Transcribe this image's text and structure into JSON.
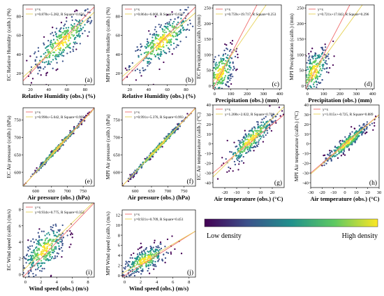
{
  "colorbar": {
    "low_label": "Low density",
    "high_label": "High density",
    "colors": [
      "#440154",
      "#3b528b",
      "#21918c",
      "#5ec962",
      "#fde725"
    ]
  },
  "line_colors": {
    "identity": "#f06d6d",
    "fit": "#e8d35a"
  },
  "chart_data": [
    {
      "id": "a",
      "type": "scatter",
      "panel_label": "(a)",
      "xlabel": "Relative Humidity (obs.) (%)",
      "ylabel": "EC Relative Humidity (calib.) (%)",
      "xlim": [
        12,
        90
      ],
      "ylim": [
        8,
        92
      ],
      "xticks": [
        20,
        40,
        60,
        80
      ],
      "yticks": [
        20,
        40,
        60,
        80
      ],
      "legend": [
        "y=x",
        "y=0.878x+5.282, R Square=0.656"
      ],
      "fit": {
        "slope": 0.878,
        "intercept": 5.282
      },
      "cloud": {
        "cx": 55,
        "cy": 53,
        "sx": 17,
        "sy": 16,
        "rho": 0.81,
        "n": 340
      }
    },
    {
      "id": "b",
      "type": "scatter",
      "panel_label": "(b)",
      "xlabel": "Relative Humidity (obs.) (%)",
      "ylabel": "MPI Relative Humidity (calib.) (%)",
      "xlim": [
        12,
        90
      ],
      "ylim": [
        8,
        92
      ],
      "xticks": [
        20,
        40,
        60,
        80
      ],
      "yticks": [
        20,
        40,
        60,
        80
      ],
      "legend": [
        "y=x",
        "y=0.864x+6.060, R Square=0.632"
      ],
      "fit": {
        "slope": 0.864,
        "intercept": 6.06
      },
      "cloud": {
        "cx": 55,
        "cy": 54,
        "sx": 17,
        "sy": 16,
        "rho": 0.8,
        "n": 340
      }
    },
    {
      "id": "c",
      "type": "scatter",
      "panel_label": "(c)",
      "xlabel": "Precipitation (obs.) (mm)",
      "ylabel": "EC Precipitation (calib.) (mm)",
      "xlim": [
        -10,
        410
      ],
      "ylim": [
        -10,
        260
      ],
      "xticks": [
        0,
        100,
        200,
        300,
        400
      ],
      "yticks": [
        0,
        50,
        100,
        150,
        200,
        250
      ],
      "legend": [
        "y=x",
        "y=0.759x+19.717, R Square=0.253"
      ],
      "fit": {
        "slope": 0.759,
        "intercept": 19.717
      },
      "cloud": {
        "cx": 35,
        "cy": 40,
        "sx": 45,
        "sy": 40,
        "rho": 0.5,
        "n": 260
      }
    },
    {
      "id": "d",
      "type": "scatter",
      "panel_label": "(d)",
      "xlabel": "Precipitation (obs.) (mm)",
      "ylabel": "MPI Precipitation (calib.) (mm)",
      "xlim": [
        -10,
        410
      ],
      "ylim": [
        -10,
        260
      ],
      "xticks": [
        0,
        100,
        200,
        300,
        400
      ],
      "yticks": [
        0,
        50,
        100,
        150,
        200,
        250
      ],
      "legend": [
        "y=x",
        "y=0.721x+17.043, R Square=0.296"
      ],
      "fit": {
        "slope": 0.721,
        "intercept": 17.043
      },
      "cloud": {
        "cx": 40,
        "cy": 45,
        "sx": 45,
        "sy": 40,
        "rho": 0.55,
        "n": 260
      }
    },
    {
      "id": "e",
      "type": "scatter",
      "panel_label": "(e)",
      "xlabel": "Air pressure (obs.) (hPa)",
      "ylabel": "EC Air pressure (calib.) (hPa)",
      "xlim": [
        560,
        785
      ],
      "ylim": [
        560,
        785
      ],
      "xticks": [
        600,
        650,
        700,
        750
      ],
      "yticks": [
        600,
        650,
        700,
        750
      ],
      "legend": [
        "y=x",
        "y=0.990x+5.042, R Square=0.995"
      ],
      "fit": {
        "slope": 0.99,
        "intercept": 5.042
      },
      "cloud": {
        "cx": 670,
        "cy": 670,
        "sx": 45,
        "sy": 45,
        "rho": 0.997,
        "n": 300
      }
    },
    {
      "id": "f",
      "type": "scatter",
      "panel_label": "(f)",
      "xlabel": "Air pressure (obs.) (hPa)",
      "ylabel": "MPI Air pressure (calib.) (hPa)",
      "xlim": [
        560,
        785
      ],
      "ylim": [
        560,
        785
      ],
      "xticks": [
        600,
        650,
        700,
        750
      ],
      "yticks": [
        600,
        650,
        700,
        750
      ],
      "legend": [
        "y=x",
        "y=0.991x+5.376, R Square=0.993"
      ],
      "fit": {
        "slope": 0.991,
        "intercept": 5.376
      },
      "cloud": {
        "cx": 670,
        "cy": 670,
        "sx": 45,
        "sy": 45,
        "rho": 0.996,
        "n": 300
      }
    },
    {
      "id": "g",
      "type": "scatter",
      "panel_label": "(g)",
      "xlabel": "Air temperature (obs.) (°C)",
      "ylabel": "EC Air temperature (calib.) (°C)",
      "xlim": [
        -30,
        30
      ],
      "ylim": [
        -45,
        40
      ],
      "xticks": [
        -20,
        -10,
        0,
        10,
        20
      ],
      "yticks": [
        -40,
        -30,
        -20,
        -10,
        0,
        10,
        20,
        30,
        40
      ],
      "legend": [
        "y=x",
        "y=1.208x+2.022, R Square=0.766"
      ],
      "fit": {
        "slope": 1.208,
        "intercept": 2.022
      },
      "cloud": {
        "cx": 2,
        "cy": 4,
        "sx": 10,
        "sy": 13,
        "rho": 0.88,
        "n": 320
      }
    },
    {
      "id": "h",
      "type": "scatter",
      "panel_label": "(h)",
      "xlabel": "Air temperature (obs.) (°C)",
      "ylabel": "MPI Air temperature (calib.) (°C)",
      "xlim": [
        -30,
        30
      ],
      "ylim": [
        -45,
        40
      ],
      "xticks": [
        -30,
        -20,
        -10,
        0,
        10,
        20,
        30
      ],
      "yticks": [
        -40,
        -30,
        -20,
        -10,
        0,
        10,
        20,
        30,
        40
      ],
      "legend": [
        "y=x",
        "y=1.015x+-0.725, R Square=0.889"
      ],
      "fit": {
        "slope": 1.015,
        "intercept": -0.725
      },
      "cloud": {
        "cx": 2,
        "cy": 1,
        "sx": 10,
        "sy": 10.5,
        "rho": 0.94,
        "n": 320
      }
    },
    {
      "id": "i",
      "type": "scatter",
      "panel_label": "(i)",
      "xlabel": "Wind speed (obs.) (m/s)",
      "ylabel": "EC Wind speed (calib.) (m/s)",
      "xlim": [
        -0.3,
        8.8
      ],
      "ylim": [
        -0.3,
        8.8
      ],
      "xticks": [
        0,
        2,
        4,
        6,
        8
      ],
      "yticks": [
        0,
        2,
        4,
        6,
        8
      ],
      "legend": [
        "y=x",
        "y=0.934x+0.775, R Square=0.352"
      ],
      "fit": {
        "slope": 0.934,
        "intercept": 0.775
      },
      "cloud": {
        "cx": 2.4,
        "cy": 3.0,
        "sx": 1.4,
        "sy": 1.5,
        "rho": 0.59,
        "n": 320
      }
    },
    {
      "id": "j",
      "type": "scatter",
      "panel_label": "(j)",
      "xlabel": "Wind speed (obs.) (m/s)",
      "ylabel": "MPI Wind speed (calib.) (m/s)",
      "xlim": [
        -0.3,
        8.8
      ],
      "ylim": [
        -0.3,
        13
      ],
      "xticks": [
        0,
        2,
        4,
        6,
        8
      ],
      "yticks": [
        0,
        2,
        4,
        6,
        8,
        10,
        12
      ],
      "legend": [
        "y=x",
        "y=0.921x+0.709, R Square=0.451"
      ],
      "fit": {
        "slope": 0.921,
        "intercept": 0.709
      },
      "cloud": {
        "cx": 2.6,
        "cy": 3.1,
        "sx": 1.4,
        "sy": 1.5,
        "rho": 0.67,
        "n": 320
      }
    }
  ]
}
